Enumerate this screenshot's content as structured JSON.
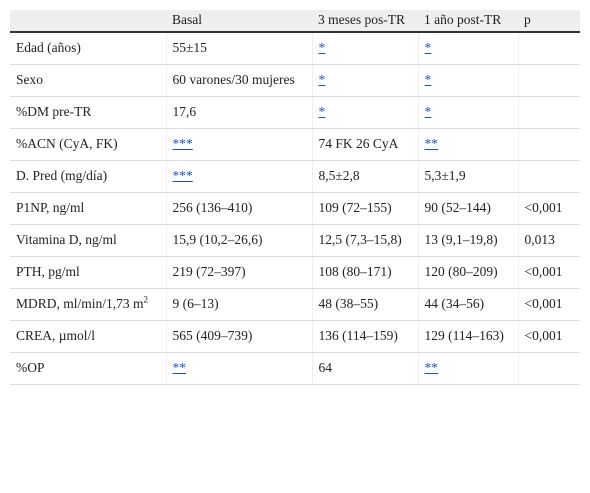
{
  "table": {
    "header": [
      null,
      "Basal",
      "3 meses pos-TR",
      "1 año post-TR",
      "p"
    ],
    "rows": [
      [
        "Edad (años)",
        "55±15",
        {
          "link": "*"
        },
        {
          "link": "*"
        },
        null
      ],
      [
        "Sexo",
        "60 varones/30 mujeres",
        {
          "link": "*"
        },
        {
          "link": "*"
        },
        null
      ],
      [
        "%DM pre-TR",
        "17,6",
        {
          "link": "*"
        },
        {
          "link": "*"
        },
        null
      ],
      [
        "%ACN (CyA, FK)",
        {
          "link": "***"
        },
        "74 FK 26 CyA",
        {
          "link": "**"
        },
        null
      ],
      [
        "D. Pred (mg/día)",
        {
          "link": "***"
        },
        "8,5±2,8",
        "5,3±1,9",
        null
      ],
      [
        "P1NP, ng/ml",
        "256 (136–410)",
        "109 (72–155)",
        "90 (52–144)",
        "<0,001"
      ],
      [
        "Vitamina D, ng/ml",
        "15,9 (10,2–26,6)",
        "12,5 (7,3–15,8)",
        "13 (9,1–19,8)",
        "0,013"
      ],
      [
        "PTH, pg/ml",
        "219 (72–397)",
        "108 (80–171)",
        "120 (80–209)",
        "<0,001"
      ],
      [
        {
          "text": "MDRD, ml/min/1,73 m",
          "sup": "2"
        },
        "9 (6–13)",
        "48 (38–55)",
        "44 (34–56)",
        "<0,001"
      ],
      [
        "CREA, µmol/l",
        "565 (409–739)",
        "136 (114–159)",
        "129 (114–163)",
        "<0,001"
      ],
      [
        "%OP",
        {
          "link": "**"
        },
        "64",
        {
          "link": "**"
        },
        null
      ]
    ]
  }
}
